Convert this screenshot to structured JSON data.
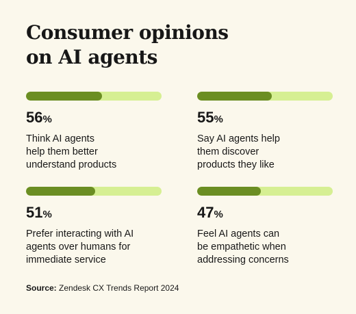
{
  "title": [
    "Consumer opinions",
    "on AI agents"
  ],
  "colors": {
    "background": "#fbf8ec",
    "bar_fill": "#6b8e23",
    "bar_track": "#d6ef93",
    "text": "#171717"
  },
  "chart_data": {
    "type": "bar",
    "title": "Consumer opinions on AI agents",
    "ylim": [
      0,
      100
    ],
    "categories": [
      "Think AI agents help them better understand products",
      "Say AI agents help them discover products they like",
      "Prefer interacting with AI agents over humans for immediate service",
      "Feel AI agents can be empathetic when addressing concerns"
    ],
    "values": [
      56,
      55,
      51,
      47
    ]
  },
  "stats": [
    {
      "value": "56",
      "unit": "%",
      "lines": [
        "Think AI agents",
        "help them better",
        "understand products"
      ]
    },
    {
      "value": "55",
      "unit": "%",
      "lines": [
        "Say AI agents help",
        "them discover",
        "products they like"
      ]
    },
    {
      "value": "51",
      "unit": "%",
      "lines": [
        "Prefer interacting with AI",
        "agents over humans for",
        "immediate service"
      ]
    },
    {
      "value": "47",
      "unit": "%",
      "lines": [
        "Feel AI agents can",
        "be empathetic when",
        "addressing concerns"
      ]
    }
  ],
  "source": {
    "label": "Source:",
    "text": " Zendesk CX Trends Report 2024"
  }
}
